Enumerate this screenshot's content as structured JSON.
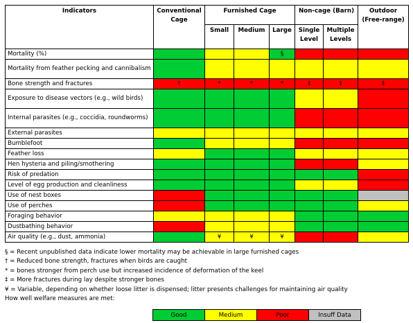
{
  "colors": {
    "G": "#00cc33",
    "Y": "#ffff00",
    "R": "#ff0000",
    "N": "#c0c0c0"
  },
  "header": {
    "indicators": "Indicators",
    "conventional": "Conventional Cage",
    "furnished": "Furnished Cage",
    "noncage": "Non-cage (Barn)",
    "outdoor": "Outdoor (Free-range)",
    "small": "Small",
    "medium": "Medium",
    "large": "Large",
    "single": "Single Level",
    "multiple": "Multiple Levels"
  },
  "rows": [
    {
      "label": "Mortality (%)",
      "h": 15,
      "cells": [
        {
          "c": "G",
          "t": ""
        },
        {
          "c": "Y",
          "t": ""
        },
        {
          "c": "Y",
          "t": ""
        },
        {
          "c": "G",
          "t": "§"
        },
        {
          "c": "R",
          "t": ""
        },
        {
          "c": "R",
          "t": ""
        },
        {
          "c": "R",
          "t": ""
        }
      ]
    },
    {
      "label": "Mortality from feather pecking and cannibalism",
      "h": 28,
      "cells": [
        {
          "c": "G",
          "t": ""
        },
        {
          "c": "Y",
          "t": ""
        },
        {
          "c": "Y",
          "t": ""
        },
        {
          "c": "Y",
          "t": ""
        },
        {
          "c": "Y",
          "t": ""
        },
        {
          "c": "Y",
          "t": ""
        },
        {
          "c": "Y",
          "t": ""
        }
      ]
    },
    {
      "label": "Bone strength and fractures",
      "h": 15,
      "cells": [
        {
          "c": "R",
          "t": "†"
        },
        {
          "c": "R",
          "t": "*"
        },
        {
          "c": "R",
          "t": "*"
        },
        {
          "c": "R",
          "t": "*"
        },
        {
          "c": "R",
          "t": "‡"
        },
        {
          "c": "R",
          "t": "‡"
        },
        {
          "c": "R",
          "t": "‡"
        }
      ]
    },
    {
      "label": "Exposure to disease vectors (e.g., wild birds)",
      "h": 28,
      "cells": [
        {
          "c": "G",
          "t": ""
        },
        {
          "c": "G",
          "t": ""
        },
        {
          "c": "G",
          "t": ""
        },
        {
          "c": "G",
          "t": ""
        },
        {
          "c": "Y",
          "t": ""
        },
        {
          "c": "Y",
          "t": ""
        },
        {
          "c": "R",
          "t": ""
        }
      ]
    },
    {
      "label": "Internal parasites (e.g., coccidia, roundworms)",
      "h": 28,
      "cells": [
        {
          "c": "G",
          "t": ""
        },
        {
          "c": "G",
          "t": ""
        },
        {
          "c": "G",
          "t": ""
        },
        {
          "c": "G",
          "t": ""
        },
        {
          "c": "R",
          "t": ""
        },
        {
          "c": "R",
          "t": ""
        },
        {
          "c": "R",
          "t": ""
        }
      ]
    },
    {
      "label": "External parasites",
      "h": 15,
      "cells": [
        {
          "c": "Y",
          "t": ""
        },
        {
          "c": "Y",
          "t": ""
        },
        {
          "c": "Y",
          "t": ""
        },
        {
          "c": "Y",
          "t": ""
        },
        {
          "c": "Y",
          "t": ""
        },
        {
          "c": "Y",
          "t": ""
        },
        {
          "c": "Y",
          "t": ""
        }
      ]
    },
    {
      "label": "Bumblefoot",
      "h": 15,
      "cells": [
        {
          "c": "G",
          "t": ""
        },
        {
          "c": "Y",
          "t": ""
        },
        {
          "c": "Y",
          "t": ""
        },
        {
          "c": "Y",
          "t": ""
        },
        {
          "c": "R",
          "t": ""
        },
        {
          "c": "R",
          "t": ""
        },
        {
          "c": "R",
          "t": ""
        }
      ]
    },
    {
      "label": "Feather loss",
      "h": 15,
      "cells": [
        {
          "c": "Y",
          "t": ""
        },
        {
          "c": "G",
          "t": ""
        },
        {
          "c": "G",
          "t": ""
        },
        {
          "c": "G",
          "t": ""
        },
        {
          "c": "Y",
          "t": ""
        },
        {
          "c": "Y",
          "t": ""
        },
        {
          "c": "Y",
          "t": ""
        }
      ]
    },
    {
      "label": "Hen hysteria and piling/smothering",
      "h": 15,
      "cells": [
        {
          "c": "G",
          "t": ""
        },
        {
          "c": "G",
          "t": ""
        },
        {
          "c": "G",
          "t": ""
        },
        {
          "c": "G",
          "t": ""
        },
        {
          "c": "R",
          "t": ""
        },
        {
          "c": "R",
          "t": ""
        },
        {
          "c": "Y",
          "t": ""
        }
      ]
    },
    {
      "label": "Risk of predation",
      "h": 15,
      "cells": [
        {
          "c": "G",
          "t": ""
        },
        {
          "c": "G",
          "t": ""
        },
        {
          "c": "G",
          "t": ""
        },
        {
          "c": "G",
          "t": ""
        },
        {
          "c": "G",
          "t": ""
        },
        {
          "c": "G",
          "t": ""
        },
        {
          "c": "R",
          "t": ""
        }
      ]
    },
    {
      "label": "Level of egg production and cleanliness",
      "h": 15,
      "cells": [
        {
          "c": "G",
          "t": ""
        },
        {
          "c": "G",
          "t": ""
        },
        {
          "c": "G",
          "t": ""
        },
        {
          "c": "G",
          "t": ""
        },
        {
          "c": "Y",
          "t": ""
        },
        {
          "c": "Y",
          "t": ""
        },
        {
          "c": "R",
          "t": ""
        }
      ]
    },
    {
      "label": "Use of nest boxes",
      "h": 15,
      "cells": [
        {
          "c": "R",
          "t": ""
        },
        {
          "c": "G",
          "t": ""
        },
        {
          "c": "G",
          "t": ""
        },
        {
          "c": "G",
          "t": ""
        },
        {
          "c": "G",
          "t": ""
        },
        {
          "c": "G",
          "t": ""
        },
        {
          "c": "N",
          "t": ""
        }
      ]
    },
    {
      "label": "Use of perches",
      "h": 15,
      "cells": [
        {
          "c": "R",
          "t": ""
        },
        {
          "c": "G",
          "t": ""
        },
        {
          "c": "G",
          "t": ""
        },
        {
          "c": "G",
          "t": ""
        },
        {
          "c": "G",
          "t": ""
        },
        {
          "c": "G",
          "t": ""
        },
        {
          "c": "Y",
          "t": ""
        }
      ]
    },
    {
      "label": "Foraging behavior",
      "h": 15,
      "cells": [
        {
          "c": "Y",
          "t": ""
        },
        {
          "c": "Y",
          "t": ""
        },
        {
          "c": "Y",
          "t": ""
        },
        {
          "c": "Y",
          "t": ""
        },
        {
          "c": "G",
          "t": ""
        },
        {
          "c": "G",
          "t": ""
        },
        {
          "c": "G",
          "t": ""
        }
      ]
    },
    {
      "label": "Dustbathing behavior",
      "h": 15,
      "cells": [
        {
          "c": "R",
          "t": ""
        },
        {
          "c": "Y",
          "t": ""
        },
        {
          "c": "Y",
          "t": ""
        },
        {
          "c": "Y",
          "t": ""
        },
        {
          "c": "G",
          "t": ""
        },
        {
          "c": "G",
          "t": ""
        },
        {
          "c": "G",
          "t": ""
        }
      ]
    },
    {
      "label": "Air quality (e.g., dust, ammonia)",
      "h": 15,
      "cells": [
        {
          "c": "G",
          "t": ""
        },
        {
          "c": "Y",
          "t": "¥"
        },
        {
          "c": "Y",
          "t": "¥"
        },
        {
          "c": "Y",
          "t": "¥"
        },
        {
          "c": "R",
          "t": ""
        },
        {
          "c": "R",
          "t": ""
        },
        {
          "c": "Y",
          "t": ""
        }
      ]
    }
  ],
  "footnotes": [
    "§ = Recent unpublished data indicate lower mortality may be achievable in large furnished cages",
    "† = Reduced bone strength, fractures when birds are caught",
    "* = bones stronger from perch use but increased incidence of deformation of the keel",
    "‡ = More fractures during lay despite stronger bones",
    "¥ = Variable, depending on whether loose litter is dispensed; litter presents challenges for maintaining air quality",
    "How well welfare measures are met:"
  ],
  "legend": [
    {
      "label": "Good",
      "c": "G"
    },
    {
      "label": "Medium",
      "c": "Y"
    },
    {
      "label": "Poor",
      "c": "R"
    },
    {
      "label": "Insuff Data",
      "c": "N"
    }
  ]
}
